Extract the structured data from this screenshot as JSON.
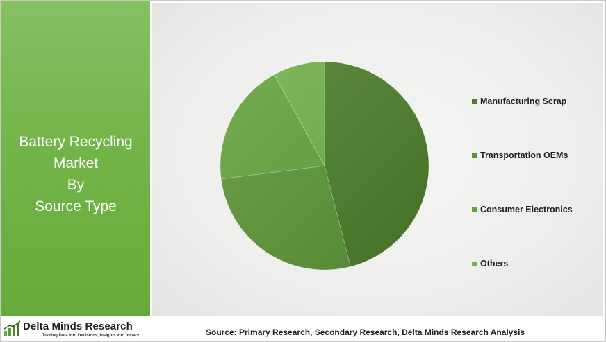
{
  "left_panel": {
    "title_lines": [
      "Battery Recycling",
      "Market",
      "By",
      "Source Type"
    ]
  },
  "chart_data": {
    "type": "pie",
    "title": "Battery Recycling Market By Source Type",
    "categories": [
      "Manufacturing Scrap",
      "Transportation OEMs",
      "Consumer Electronics",
      "Others"
    ],
    "values": [
      46,
      27,
      19,
      8
    ],
    "unit": "%",
    "legend_position": "right",
    "colors": [
      "#4d7f2b",
      "#5c9637",
      "#65a33e",
      "#72b14a"
    ]
  },
  "logo": {
    "name": "Delta Minds Research",
    "tagline": "Turning Data into Decisions, Insights into Impact"
  },
  "source_note": "Source: Primary Research, Secondary Research, Delta Minds Research Analysis",
  "colors": {
    "panel_green": "#74b549",
    "background": "#eeeeec"
  }
}
